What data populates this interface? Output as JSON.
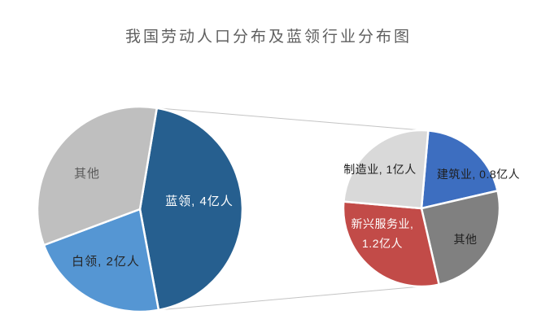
{
  "title": "我国劳动人口分布及蓝领行业分布图",
  "chart_data": {
    "type": "pie",
    "subtype": "pie-of-pie",
    "unit": "亿人",
    "legend": "none",
    "main_pie": {
      "start_angle_deg": 9.5,
      "slices": [
        {
          "slug": "blue-collar",
          "name": "蓝领",
          "value": 4,
          "label": "蓝领, 4亿人",
          "color": "#265f8f",
          "label_color": "#ffffff"
        },
        {
          "slug": "white-collar",
          "name": "白领",
          "value": 2,
          "label": "白领, 2亿人",
          "color": "#5596d3",
          "label_color": "#262626"
        },
        {
          "slug": "other",
          "name": "其他",
          "value": 3,
          "label": "其他",
          "color": "#bfbfbf",
          "label_color": "#595959"
        }
      ]
    },
    "secondary_pie": {
      "start_angle_deg": 5,
      "slices": [
        {
          "slug": "construction",
          "name": "建筑业",
          "value": 0.8,
          "label": "建筑业, 0.8亿人",
          "color": "#3d6ec0",
          "label_color": "#1f1f1f"
        },
        {
          "slug": "other",
          "name": "其他",
          "value": 1.0,
          "label": "其他",
          "color": "#808080",
          "label_color": "#1f1f1f"
        },
        {
          "slug": "emerging-services",
          "name": "新兴服务业",
          "value": 1.2,
          "label_line1": "新兴服务业,",
          "label_line2": "1.2亿人",
          "color": "#c24b48",
          "label_color": "#ffffff"
        },
        {
          "slug": "manufacturing",
          "name": "制造业",
          "value": 1.0,
          "label": "制造业, 1亿人",
          "color": "#d9d9d9",
          "label_color": "#1f1f1f"
        }
      ]
    },
    "connector": {
      "color": "#c4c4c4",
      "from_slice": "蓝领"
    }
  }
}
